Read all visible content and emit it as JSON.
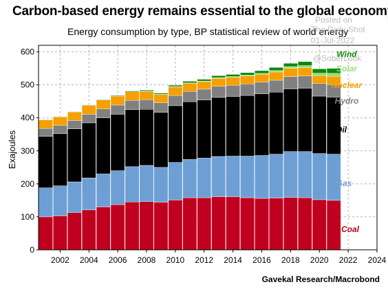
{
  "title": "Carbon-based energy remains essential to the global economy",
  "subtitle": "Energy consumption by type, BP statistical review of world energy",
  "watermark": {
    "line1": "Posted on",
    "line2": "The Daily Shot",
    "line3": "01-Jul-2022",
    "line4": "@SoberLook"
  },
  "credit": "Gavekal Research/Macrobond",
  "chart_data": {
    "type": "bar",
    "stacked": true,
    "ylabel": "Exajoules",
    "xlabel": "",
    "ylim": [
      0,
      620
    ],
    "xlim": [
      2000.5,
      2024
    ],
    "yticks": [
      0,
      100,
      200,
      300,
      400,
      500,
      600
    ],
    "xticks": [
      2002,
      2004,
      2006,
      2008,
      2010,
      2012,
      2014,
      2016,
      2018,
      2020,
      2022,
      2024
    ],
    "grid": true,
    "categories": [
      2001,
      2002,
      2003,
      2004,
      2005,
      2006,
      2007,
      2008,
      2009,
      2010,
      2011,
      2012,
      2013,
      2014,
      2015,
      2016,
      2017,
      2018,
      2019,
      2020,
      2021
    ],
    "series": [
      {
        "name": "Coal",
        "color": "#c0001f",
        "values": [
          100,
          103,
          113,
          121,
          130,
          137,
          145,
          146,
          144,
          151,
          158,
          158,
          161,
          161,
          158,
          156,
          157,
          159,
          158,
          152,
          150
        ]
      },
      {
        "name": "Gas",
        "color": "#6e9fd4",
        "values": [
          88,
          91,
          93,
          97,
          100,
          103,
          107,
          110,
          106,
          114,
          116,
          120,
          122,
          123,
          126,
          130,
          133,
          139,
          140,
          140,
          140
        ]
      },
      {
        "name": "Oil",
        "color": "#000000",
        "values": [
          156,
          158,
          161,
          167,
          170,
          171,
          173,
          170,
          167,
          172,
          175,
          176,
          179,
          181,
          184,
          187,
          188,
          190,
          192,
          174,
          173
        ]
      },
      {
        "name": "Hydro",
        "color": "#808080",
        "values": [
          24,
          25,
          25,
          26,
          27,
          28,
          28,
          29,
          29,
          31,
          31,
          33,
          34,
          34,
          35,
          35,
          36,
          37,
          37,
          38,
          38
        ]
      },
      {
        "name": "Nuclear",
        "color": "#f5a000",
        "values": [
          26,
          26,
          26,
          27,
          27,
          27,
          26,
          26,
          25,
          26,
          25,
          23,
          24,
          24,
          24,
          24,
          25,
          25,
          25,
          24,
          25
        ]
      },
      {
        "name": "Solar",
        "color": "#99dd77",
        "values": [
          0,
          0,
          0,
          0,
          0,
          0,
          0,
          0.2,
          0.4,
          0.7,
          1,
          1.5,
          2,
          2.2,
          2.5,
          3,
          4.5,
          5.5,
          6.5,
          7.5,
          9
        ]
      },
      {
        "name": "Wind",
        "color": "#0a8a0a",
        "values": [
          0.6,
          0.8,
          1,
          1.2,
          1.5,
          2,
          2.5,
          3,
          3.5,
          4,
          5,
          5.5,
          6,
          6.5,
          7.5,
          8,
          9.5,
          10,
          12,
          13,
          15
        ]
      }
    ],
    "legend_placement": "inline-right",
    "legend_colors": {
      "Wind": "#0a8a0a",
      "Solar": "#99dd77",
      "Nuclear": "#f5a000",
      "Hydro": "#808080",
      "Oil": "#000000",
      "Gas": "#6e9fd4",
      "Coal": "#c0001f"
    }
  }
}
